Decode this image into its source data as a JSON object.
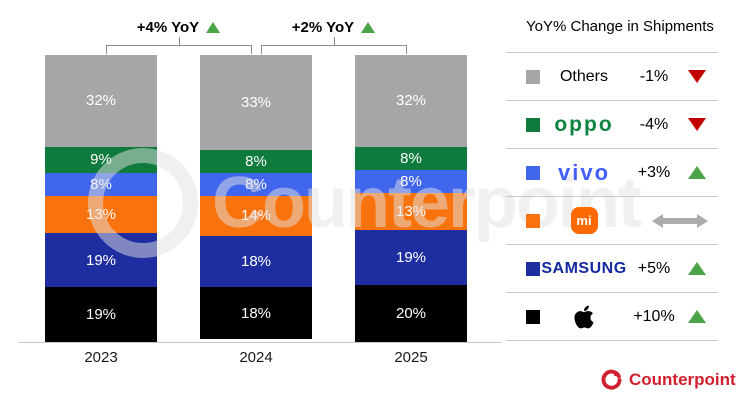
{
  "colors": {
    "up": "#4BA546",
    "down": "#C00000",
    "flat": "#ACACAC",
    "brand_red": "#D0202E",
    "bracket": "#8C8C8C",
    "divider": "#C8C8C8"
  },
  "chart_data": {
    "type": "bar",
    "stacked": true,
    "title": "",
    "xlabel": "",
    "ylabel": "",
    "ylim": [
      0,
      100
    ],
    "value_suffix": "%",
    "categories": [
      "2023",
      "2024",
      "2025"
    ],
    "series": [
      {
        "name": "Others",
        "color": "#A6A6A6",
        "values": [
          32,
          33,
          32
        ]
      },
      {
        "name": "OPPO",
        "color": "#0E7A3C",
        "values": [
          9,
          8,
          8
        ]
      },
      {
        "name": "vivo",
        "color": "#4166EE",
        "values": [
          8,
          8,
          8
        ]
      },
      {
        "name": "Xiaomi",
        "color": "#F8730D",
        "values": [
          13,
          14,
          13
        ]
      },
      {
        "name": "Samsung",
        "color": "#1E2DA0",
        "values": [
          19,
          18,
          19
        ]
      },
      {
        "name": "Apple",
        "color": "#000000",
        "values": [
          19,
          18,
          20
        ]
      }
    ],
    "yoy_brackets": [
      {
        "text": "+4% YoY",
        "direction": "up",
        "from": "2023",
        "to": "2024"
      },
      {
        "text": "+2% YoY",
        "direction": "up",
        "from": "2024",
        "to": "2025"
      }
    ]
  },
  "legend": {
    "title": "YoY% Change in Shipments",
    "rows": [
      {
        "brand": "Others",
        "label": "Others",
        "swatch": "#A6A6A6",
        "logo_color": "#000000",
        "value": "-1%",
        "direction": "down"
      },
      {
        "brand": "OPPO",
        "label": "oppo",
        "swatch": "#0E7A3C",
        "logo_color": "#0D8540",
        "value": "-4%",
        "direction": "down"
      },
      {
        "brand": "vivo",
        "label": "vivo",
        "swatch": "#4166EE",
        "logo_color": "#415FFF",
        "value": "+3%",
        "direction": "up"
      },
      {
        "brand": "Xiaomi",
        "label": "mi",
        "swatch": "#F8730D",
        "logo_color": "#FF6900",
        "value": "",
        "direction": "flat"
      },
      {
        "brand": "Samsung",
        "label": "SAMSUNG",
        "swatch": "#1E2DA0",
        "logo_color": "#1428A0",
        "value": "+5%",
        "direction": "up"
      },
      {
        "brand": "Apple",
        "label": "Apple",
        "swatch": "#000000",
        "logo_color": "#000000",
        "value": "+10%",
        "direction": "up"
      }
    ]
  },
  "branding": {
    "logo_text": "Counterpoint",
    "watermark": "Counterpoint"
  }
}
